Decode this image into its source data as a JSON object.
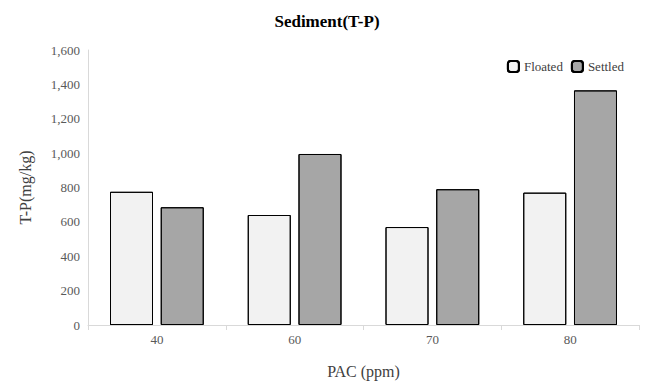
{
  "chart_data": {
    "type": "bar",
    "title": "Sediment(T-P)",
    "x_label": "PAC (ppm)",
    "y_label": "T-P(mg/kg)",
    "categories": [
      "40",
      "60",
      "70",
      "80"
    ],
    "series": [
      {
        "name": "Floated",
        "color": "#f2f2f2",
        "values": [
          775,
          640,
          570,
          770
        ]
      },
      {
        "name": "Settled",
        "color": "#a6a6a6",
        "values": [
          685,
          995,
          790,
          1365
        ]
      }
    ],
    "ylim": [
      0,
      1600
    ],
    "yticks": [
      0,
      200,
      400,
      600,
      800,
      {
        "value": 1000,
        "label": "1,000"
      },
      {
        "value": 1200,
        "label": "1,200"
      },
      {
        "value": 1400,
        "label": "1,400"
      },
      {
        "value": 1600,
        "label": "1,600"
      }
    ],
    "grid": false,
    "legend": "upper right"
  }
}
